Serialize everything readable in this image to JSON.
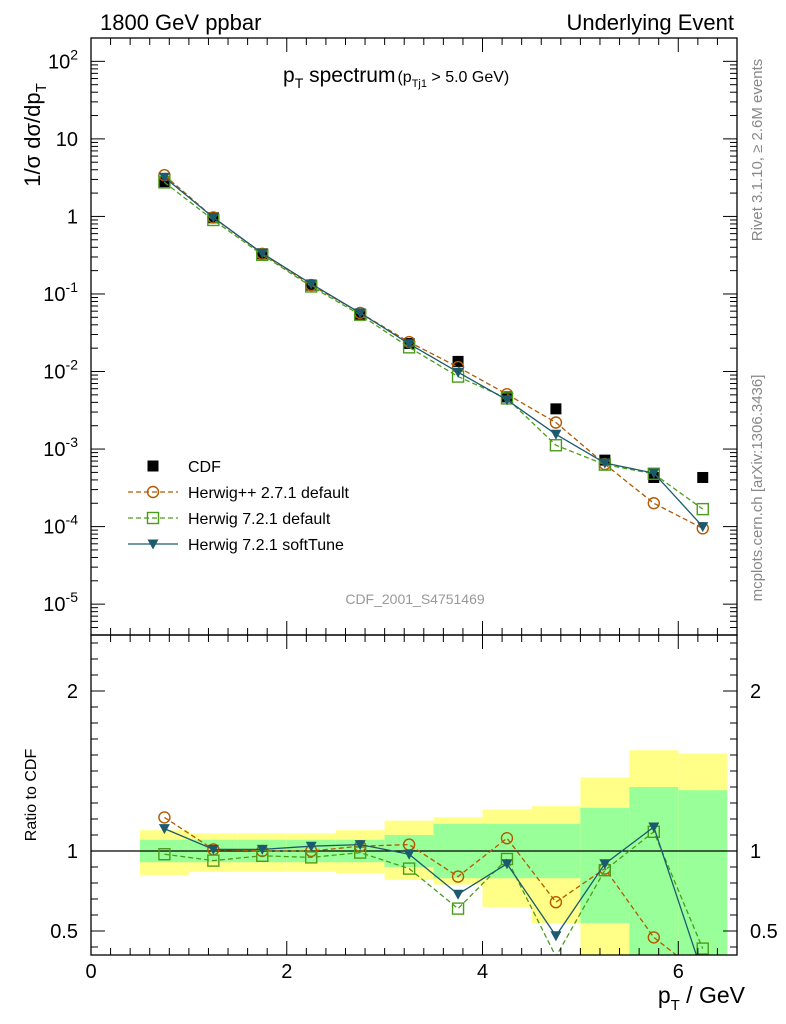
{
  "header": {
    "left": "1800 GeV ppbar",
    "right": "Underlying Event"
  },
  "title": {
    "main": "p",
    "main_sub": "T",
    "main_rest": " spectrum",
    "cut_open": "(p",
    "cut_sub": "Tj1",
    "cut_rest": " > 5.0 GeV)"
  },
  "side_labels": {
    "rivet": "Rivet 3.1.10, ≥ 2.6M events",
    "mcplots": "mcplots.cern.ch [arXiv:1306.3436]"
  },
  "watermark": "CDF_2001_S4751469",
  "axes": {
    "ylabel_main": "1/σ dσ/dp",
    "ylabel_main_sub": "T",
    "ylabel_ratio": "Ratio to CDF",
    "xlabel": "p",
    "xlabel_sub": "T",
    "xlabel_rest": " / GeV"
  },
  "chart_data": {
    "type": "line",
    "x": [
      0.75,
      1.25,
      1.75,
      2.25,
      2.75,
      3.25,
      3.75,
      4.25,
      4.75,
      5.25,
      5.75,
      6.25
    ],
    "xlim": [
      0,
      6.6
    ],
    "xticks": [
      "0",
      "2",
      "4",
      "6"
    ],
    "main": {
      "scale": "log",
      "ylim": [
        4e-06,
        200
      ],
      "yticks": [
        {
          "base": "10",
          "exp": "-5"
        },
        {
          "base": "10",
          "exp": "-4"
        },
        {
          "base": "10",
          "exp": "-3"
        },
        {
          "base": "10",
          "exp": "-2"
        },
        {
          "base": "10",
          "exp": "-1"
        },
        {
          "base": "1",
          "exp": ""
        },
        {
          "base": "10",
          "exp": ""
        },
        {
          "base": "10",
          "exp": "2"
        }
      ],
      "series": [
        {
          "name": "CDF",
          "color": "#000000",
          "marker": "square-filled",
          "line": "none",
          "values": [
            2.8,
            0.96,
            0.33,
            0.13,
            0.055,
            0.023,
            0.0135,
            0.0047,
            0.0033,
            0.00072,
            0.00043,
            0.00043
          ]
        },
        {
          "name": "Herwig++ 2.7.1 default",
          "color": "#b35900",
          "marker": "circle-open",
          "line": "dashed",
          "values": [
            3.4,
            0.97,
            0.33,
            0.13,
            0.057,
            0.024,
            0.0114,
            0.0051,
            0.0022,
            0.00064,
            0.0002,
            9.5e-05
          ]
        },
        {
          "name": "Herwig 7.2.1 default",
          "color": "#4c9c1c",
          "marker": "square-open",
          "line": "dashed",
          "values": [
            2.75,
            0.9,
            0.32,
            0.125,
            0.054,
            0.0205,
            0.0086,
            0.0045,
            0.00112,
            0.00063,
            0.00048,
            0.000168
          ]
        },
        {
          "name": "Herwig 7.2.1 softTune",
          "color": "#1c5a6e",
          "marker": "triangle-down-filled",
          "line": "solid",
          "values": [
            3.2,
            0.97,
            0.335,
            0.135,
            0.057,
            0.0228,
            0.0098,
            0.0043,
            0.00155,
            0.00066,
            0.00049,
            0.0001
          ]
        }
      ]
    },
    "ratio": {
      "ylim": [
        0.35,
        2.35
      ],
      "yticks": [
        "0.5",
        "1",
        "2"
      ],
      "bands": {
        "x_edges": [
          0.5,
          1.0,
          1.5,
          2.0,
          2.5,
          3.0,
          3.5,
          4.0,
          4.5,
          5.0,
          5.5,
          6.0,
          6.5
        ],
        "yellow_lo": [
          0.85,
          0.87,
          0.87,
          0.87,
          0.86,
          0.82,
          0.79,
          0.65,
          0.55,
          0.35,
          0.35,
          0.35
        ],
        "yellow_hi": [
          1.13,
          1.11,
          1.11,
          1.11,
          1.13,
          1.19,
          1.21,
          1.26,
          1.28,
          1.46,
          1.63,
          1.61
        ],
        "green_lo": [
          0.93,
          0.93,
          0.93,
          0.93,
          0.93,
          0.9,
          0.83,
          0.83,
          0.83,
          0.55,
          0.35,
          0.35
        ],
        "green_hi": [
          1.07,
          1.07,
          1.07,
          1.07,
          1.07,
          1.1,
          1.17,
          1.17,
          1.17,
          1.27,
          1.4,
          1.38
        ]
      },
      "series": [
        {
          "name": "Herwig++ 2.7.1 default",
          "values": [
            1.21,
            1.01,
            1.0,
            1.0,
            1.03,
            1.04,
            0.84,
            1.08,
            0.68,
            0.89,
            0.46,
            0.22
          ]
        },
        {
          "name": "Herwig 7.2.1 default",
          "values": [
            0.98,
            0.94,
            0.97,
            0.96,
            0.99,
            0.89,
            0.64,
            0.95,
            0.34,
            0.88,
            1.12,
            0.39
          ]
        },
        {
          "name": "Herwig 7.2.1 softTune",
          "values": [
            1.14,
            1.01,
            1.01,
            1.03,
            1.04,
            0.98,
            0.73,
            0.92,
            0.47,
            0.92,
            1.15,
            0.23
          ]
        }
      ]
    },
    "legend_position": "lower-left"
  }
}
